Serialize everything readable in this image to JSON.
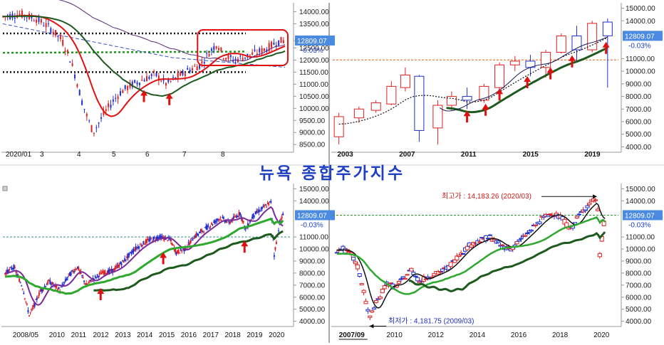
{
  "title": "뉴욕 종합주가지수",
  "colors": {
    "up": "#e02020",
    "down": "#2030d0",
    "ma_red": "#e01010",
    "ma_green": "#0a8a0a",
    "ma_dark": "#1e5a1e",
    "ma_purple": "#7a2a9a",
    "ma_navy": "#1a1a5a",
    "ref_line_orange": "#e06010",
    "ref_line_teal": "#3a9090",
    "ref_line_green": "#2a9a2a",
    "price_box": "#4a8ae0",
    "arrow": "#e01010",
    "highlight_box": "#e01010"
  },
  "current": {
    "price_label": "12809.07",
    "change_label": "-0.03%"
  },
  "chart_data": [
    {
      "id": "top-left-daily-2020",
      "type": "candlestick",
      "x_labels": [
        "2020/01",
        "3",
        "4",
        "5",
        "6",
        "7",
        "8"
      ],
      "y_ticks": [
        "14000.00",
        "13500.00",
        "12800.00",
        "12500.00",
        "12000.00",
        "11500.00",
        "11000.00",
        "10500.00",
        "10000.00",
        "9500.00",
        "9000.00",
        "8500.00"
      ],
      "y_values": [
        14000,
        13500,
        12800,
        12500,
        12000,
        11500,
        11000,
        10500,
        10000,
        9500,
        9000,
        8500
      ],
      "ylim": [
        8300,
        14250
      ],
      "last_price": 12809.07,
      "change": "-0.03%",
      "price_path": [
        [
          0,
          13800
        ],
        [
          6,
          13900
        ],
        [
          12,
          13700
        ],
        [
          17,
          13300
        ],
        [
          21,
          12800
        ],
        [
          24,
          12000
        ],
        [
          26,
          11200
        ],
        [
          28,
          10300
        ],
        [
          30,
          9600
        ],
        [
          32,
          9000
        ],
        [
          34,
          9400
        ],
        [
          36,
          9800
        ],
        [
          39,
          10300
        ],
        [
          42,
          10700
        ],
        [
          46,
          11000
        ],
        [
          50,
          11200
        ],
        [
          54,
          11400
        ],
        [
          58,
          11000
        ],
        [
          62,
          11300
        ],
        [
          66,
          11600
        ],
        [
          70,
          11800
        ],
        [
          73,
          12300
        ],
        [
          76,
          12700
        ],
        [
          78,
          12200
        ],
        [
          82,
          12000
        ],
        [
          86,
          12150
        ],
        [
          90,
          12300
        ],
        [
          94,
          12500
        ],
        [
          97,
          12750
        ],
        [
          100,
          12809
        ]
      ],
      "arrow_x": [
        50,
        59
      ],
      "highlight_box_x": [
        69,
        101
      ]
    },
    {
      "id": "top-right-monthly-2003",
      "type": "candlestick",
      "x_labels": [
        "2003",
        "2007",
        "2011",
        "2015",
        "2019"
      ],
      "x_label_values": [
        2003,
        2007,
        2011,
        2015,
        2019
      ],
      "y_ticks": [
        "15000.00",
        "14000.00",
        "12809.07",
        "11000.00",
        "10000.00",
        "9000.00",
        "8000.00",
        "7000.00",
        "6000.00",
        "5000.00",
        "4000.00"
      ],
      "y_values": [
        15000,
        14000,
        12809,
        11000,
        10000,
        9000,
        8000,
        7000,
        6000,
        5000,
        4000
      ],
      "ylim": [
        3800,
        15200
      ],
      "last_price": 12809.07,
      "change": "-0.03%",
      "ref_level": 10900,
      "candles": [
        {
          "x": 2003.1,
          "o": 4800,
          "c": 6400,
          "h": 6700,
          "l": 4200
        },
        {
          "x": 2004.4,
          "o": 6300,
          "c": 7000,
          "h": 7200,
          "l": 5900
        },
        {
          "x": 2005.5,
          "o": 6900,
          "c": 7500,
          "h": 7700,
          "l": 6700
        },
        {
          "x": 2006.5,
          "o": 7400,
          "c": 8800,
          "h": 9200,
          "l": 7300
        },
        {
          "x": 2007.4,
          "o": 8700,
          "c": 9700,
          "h": 10300,
          "l": 8400
        },
        {
          "x": 2008.3,
          "o": 9600,
          "c": 5300,
          "h": 9700,
          "l": 4400
        },
        {
          "x": 2009.5,
          "o": 5500,
          "c": 7300,
          "h": 7700,
          "l": 4180
        },
        {
          "x": 2010.4,
          "o": 7300,
          "c": 8000,
          "h": 8400,
          "l": 6900
        },
        {
          "x": 2011.4,
          "o": 8000,
          "c": 7700,
          "h": 8700,
          "l": 7000
        },
        {
          "x": 2012.5,
          "o": 7700,
          "c": 8800,
          "h": 9000,
          "l": 7500
        },
        {
          "x": 2013.5,
          "o": 8700,
          "c": 10500,
          "h": 10700,
          "l": 8600
        },
        {
          "x": 2014.5,
          "o": 10500,
          "c": 10800,
          "h": 11200,
          "l": 10000
        },
        {
          "x": 2015.5,
          "o": 10800,
          "c": 10300,
          "h": 11300,
          "l": 9600
        },
        {
          "x": 2016.5,
          "o": 10300,
          "c": 11500,
          "h": 11700,
          "l": 9500
        },
        {
          "x": 2017.5,
          "o": 11500,
          "c": 12800,
          "h": 13000,
          "l": 11400
        },
        {
          "x": 2018.5,
          "o": 12800,
          "c": 11700,
          "h": 13600,
          "l": 10700
        },
        {
          "x": 2019.5,
          "o": 11700,
          "c": 13800,
          "h": 14000,
          "l": 11500
        },
        {
          "x": 2020.5,
          "o": 13900,
          "c": 12809,
          "h": 14183,
          "l": 8700
        }
      ],
      "arrow_x": [
        2011.4,
        2012.6,
        2013.5,
        2015.3,
        2016.8,
        2018.2,
        2020.4
      ]
    },
    {
      "id": "bottom-left-weekly-2008",
      "type": "candlestick",
      "x_labels": [
        "2008/05",
        "2010",
        "2011",
        "2012",
        "2013",
        "2014",
        "2015",
        "2016",
        "2017",
        "2018",
        "2019",
        "2020"
      ],
      "x_label_values": [
        2008.35,
        2010,
        2011,
        2012,
        2013,
        2014,
        2015,
        2016,
        2017,
        2018,
        2019,
        2020
      ],
      "y_ticks": [
        "15000.00",
        "14000.00",
        "12809.07",
        "11000.00",
        "10000.00",
        "9000.00",
        "8000.00",
        "7000.00",
        "6000.00",
        "5000.00",
        "4000.00"
      ],
      "y_values": [
        15000,
        14000,
        12809,
        11000,
        10000,
        9000,
        8000,
        7000,
        6000,
        5000,
        4000
      ],
      "ylim": [
        3800,
        15200
      ],
      "last_price": 12809.07,
      "change": "-0.03%",
      "ref_level": 11000,
      "price_path": [
        [
          2008.0,
          8000
        ],
        [
          2008.4,
          8500
        ],
        [
          2008.8,
          6800
        ],
        [
          2009.1,
          4500
        ],
        [
          2009.3,
          5200
        ],
        [
          2009.6,
          6500
        ],
        [
          2010.0,
          7300
        ],
        [
          2010.5,
          6600
        ],
        [
          2010.9,
          7800
        ],
        [
          2011.3,
          8500
        ],
        [
          2011.7,
          7000
        ],
        [
          2012.0,
          7500
        ],
        [
          2012.4,
          8000
        ],
        [
          2012.9,
          8200
        ],
        [
          2013.4,
          9000
        ],
        [
          2013.9,
          10000
        ],
        [
          2014.5,
          10700
        ],
        [
          2015.0,
          11000
        ],
        [
          2015.5,
          10800
        ],
        [
          2015.8,
          9700
        ],
        [
          2016.2,
          10000
        ],
        [
          2016.6,
          11000
        ],
        [
          2017.2,
          11800
        ],
        [
          2017.8,
          12600
        ],
        [
          2018.2,
          12200
        ],
        [
          2018.7,
          13000
        ],
        [
          2018.95,
          11600
        ],
        [
          2019.3,
          12800
        ],
        [
          2019.8,
          13500
        ],
        [
          2020.1,
          13900
        ],
        [
          2020.25,
          9500
        ],
        [
          2020.5,
          12200
        ],
        [
          2020.65,
          12809
        ]
      ],
      "arrow_x": [
        2012.35,
        2015.2,
        2018.9
      ]
    },
    {
      "id": "bottom-right-monthly-2007",
      "type": "candlestick",
      "x_labels": [
        "2007/09",
        "2010",
        "2012",
        "2014",
        "2016",
        "2018",
        "2020"
      ],
      "x_label_values": [
        2007.7,
        2010,
        2012,
        2014,
        2016,
        2018,
        2020
      ],
      "y_ticks": [
        "15000.00",
        "14000.00",
        "12809.07",
        "11000.00",
        "10000.00",
        "9000.00",
        "8000.00",
        "7000.00",
        "6000.00",
        "5000.00",
        "4000.00"
      ],
      "y_values": [
        15000,
        14000,
        12809,
        11000,
        10000,
        9000,
        8000,
        7000,
        6000,
        5000,
        4000
      ],
      "ylim": [
        3800,
        15200
      ],
      "last_price": 12809.07,
      "change": "-0.03%",
      "ref_level": 12809,
      "high_annotation": "최고가 : 14,183.26 (2020/03)",
      "low_annotation": "최저가 : 4,181.75 (2009/03)",
      "high": {
        "x": 2020.17,
        "y": 14183.26
      },
      "low": {
        "x": 2009.17,
        "y": 4181.75
      },
      "price_path": [
        [
          2007.6,
          9900
        ],
        [
          2007.9,
          10000
        ],
        [
          2008.3,
          9500
        ],
        [
          2008.6,
          8500
        ],
        [
          2008.9,
          6500
        ],
        [
          2009.17,
          4181
        ],
        [
          2009.4,
          5200
        ],
        [
          2009.7,
          6100
        ],
        [
          2010.0,
          7200
        ],
        [
          2010.4,
          6800
        ],
        [
          2010.8,
          7500
        ],
        [
          2011.2,
          8300
        ],
        [
          2011.6,
          7300
        ],
        [
          2012.0,
          7700
        ],
        [
          2012.5,
          8000
        ],
        [
          2013.0,
          8500
        ],
        [
          2013.5,
          9500
        ],
        [
          2014.0,
          10300
        ],
        [
          2014.5,
          10700
        ],
        [
          2015.0,
          11000
        ],
        [
          2015.5,
          10300
        ],
        [
          2016.0,
          10000
        ],
        [
          2016.5,
          10800
        ],
        [
          2017.0,
          11600
        ],
        [
          2017.5,
          12500
        ],
        [
          2018.0,
          13000
        ],
        [
          2018.5,
          12500
        ],
        [
          2018.9,
          11600
        ],
        [
          2019.3,
          12800
        ],
        [
          2019.8,
          13800
        ],
        [
          2020.17,
          14183
        ],
        [
          2020.3,
          9500
        ],
        [
          2020.55,
          12809
        ]
      ]
    }
  ]
}
